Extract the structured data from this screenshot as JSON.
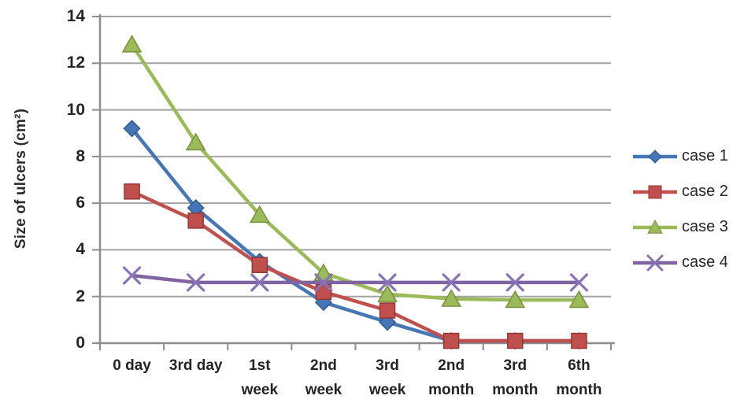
{
  "chart_data": {
    "type": "line",
    "title": "",
    "xlabel": "",
    "ylabel": "Size of ulcers (cm²)",
    "ylim": [
      0,
      14
    ],
    "yticks": [
      0,
      2,
      4,
      6,
      8,
      10,
      12,
      14
    ],
    "grid": true,
    "legend_position": "right",
    "grid_color": "#a3a3a3",
    "axis_color": "#8c8c8c",
    "categories": [
      "0 day",
      "3rd day",
      "1st\nweek",
      "2nd\nweek",
      "3rd\nweek",
      "2nd\nmonth",
      "3rd\nmonth",
      "6th\nmonth"
    ],
    "series": [
      {
        "name": "case 1",
        "marker": "diamond",
        "color": "#4576b5",
        "marker_stroke": "#2f5b96",
        "values": [
          9.2,
          5.8,
          3.5,
          1.75,
          0.9,
          0.1,
          0.1,
          0.1
        ]
      },
      {
        "name": "case 2",
        "marker": "square",
        "color": "#c0504d",
        "marker_stroke": "#963634",
        "values": [
          6.5,
          5.25,
          3.35,
          2.2,
          1.4,
          0.1,
          0.1,
          0.1
        ]
      },
      {
        "name": "case 3",
        "marker": "triangle",
        "color": "#9bbb59",
        "marker_stroke": "#76923c",
        "values": [
          12.8,
          8.6,
          5.5,
          3.0,
          2.1,
          1.9,
          1.85,
          1.85
        ]
      },
      {
        "name": "case 4",
        "marker": "x",
        "color": "#8064a2",
        "marker_stroke": "#8973b8",
        "values": [
          2.9,
          2.6,
          2.6,
          2.6,
          2.6,
          2.6,
          2.6,
          2.6
        ]
      }
    ]
  }
}
